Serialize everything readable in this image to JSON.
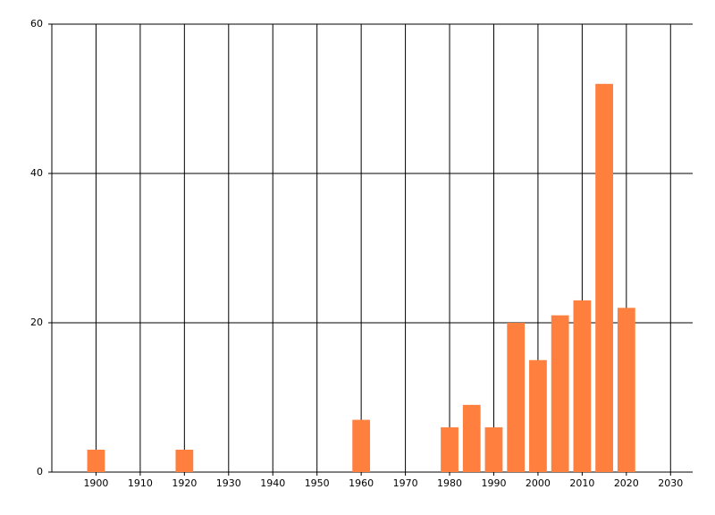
{
  "chart_data": {
    "type": "bar",
    "x": [
      1900,
      1920,
      1960,
      1980,
      1985,
      1990,
      1995,
      2000,
      2005,
      2010,
      2015,
      2020
    ],
    "values": [
      3,
      3,
      7,
      6,
      9,
      6,
      20,
      15,
      21,
      23,
      52,
      22
    ],
    "color": "#ff7f3f",
    "xlim": [
      1890,
      2035
    ],
    "xticks": [
      1900,
      1910,
      1920,
      1930,
      1940,
      1950,
      1960,
      1970,
      1980,
      1990,
      2000,
      2010,
      2020,
      2030
    ],
    "ylim": [
      0,
      60
    ],
    "yticks": [
      0,
      20,
      40,
      60
    ],
    "grid": true
  }
}
